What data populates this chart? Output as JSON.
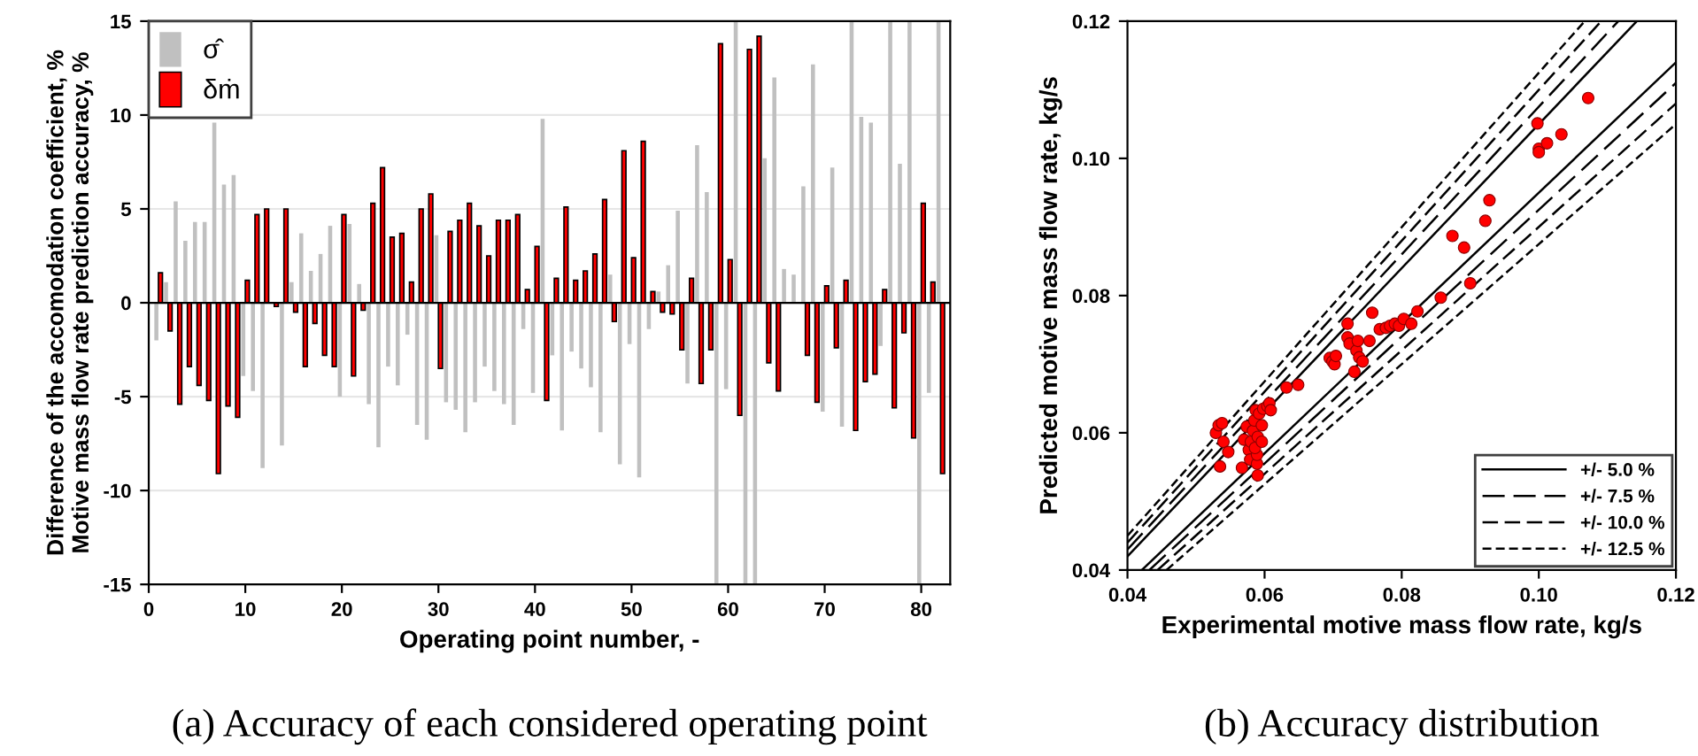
{
  "chart_data": [
    {
      "type": "bar",
      "xlabel": "Operating point number, -",
      "ylabel": "Difference of the accomodation coefficient, %\nMotive mass flow rate prediction accuracy, %",
      "x": [
        1,
        2,
        3,
        4,
        5,
        6,
        7,
        8,
        9,
        10,
        11,
        12,
        13,
        14,
        15,
        16,
        17,
        18,
        19,
        20,
        21,
        22,
        23,
        24,
        25,
        26,
        27,
        28,
        29,
        30,
        31,
        32,
        33,
        34,
        35,
        36,
        37,
        38,
        39,
        40,
        41,
        42,
        43,
        44,
        45,
        46,
        47,
        48,
        49,
        50,
        51,
        52,
        53,
        54,
        55,
        56,
        57,
        58,
        59,
        60,
        61,
        62,
        63,
        64,
        65,
        66,
        67,
        68,
        69,
        70,
        71,
        72,
        73,
        74,
        75,
        76,
        77,
        78,
        79,
        80,
        81,
        82
      ],
      "series": [
        {
          "name": "σ̂",
          "color": "#c0c0c0",
          "values": [
            -2.0,
            1.1,
            5.4,
            3.3,
            4.3,
            4.3,
            9.6,
            6.3,
            6.8,
            -3.9,
            -4.7,
            -8.8,
            null,
            -7.6,
            1.1,
            3.7,
            1.7,
            2.6,
            4.1,
            -5.0,
            4.2,
            1.0,
            -5.4,
            -7.7,
            -3.4,
            -4.4,
            -1.7,
            -6.5,
            -7.3,
            3.6,
            -5.3,
            -5.7,
            -6.9,
            -5.3,
            -3.4,
            -4.7,
            -5.4,
            -6.5,
            -1.4,
            -4.8,
            9.8,
            -2.8,
            -6.8,
            -2.6,
            -3.5,
            -4.5,
            -6.9,
            1.5,
            -8.6,
            -2.2,
            -9.3,
            -1.4,
            0.6,
            2.0,
            4.9,
            -4.3,
            8.4,
            5.9,
            -15,
            -4.6,
            15,
            -15,
            -15,
            7.7,
            12.0,
            1.8,
            1.5,
            6.2,
            12.7,
            -5.8,
            7.2,
            -6.6,
            15,
            9.9,
            9.6,
            -2.3,
            15,
            7.4,
            15,
            -15,
            -4.8,
            15
          ]
        },
        {
          "name": "δṁ",
          "color": "#ff0000",
          "values": [
            1.6,
            -1.5,
            -5.4,
            -3.4,
            -4.4,
            -5.2,
            -9.1,
            -5.5,
            -6.1,
            1.2,
            4.7,
            5.0,
            -0.2,
            5.0,
            -0.5,
            -3.4,
            -1.1,
            -2.8,
            -3.4,
            4.7,
            -3.9,
            -0.4,
            5.3,
            7.2,
            3.5,
            3.7,
            1.1,
            5.0,
            5.8,
            -3.5,
            3.8,
            4.4,
            5.3,
            4.1,
            2.5,
            4.4,
            4.4,
            4.7,
            0.7,
            3.0,
            -5.2,
            1.3,
            5.1,
            1.2,
            1.7,
            2.6,
            5.5,
            -1.0,
            8.1,
            2.4,
            8.6,
            0.6,
            -0.5,
            -0.6,
            -2.5,
            1.3,
            -4.3,
            -2.5,
            13.8,
            2.3,
            -6.0,
            13.5,
            14.2,
            -3.2,
            -4.7,
            null,
            null,
            -2.8,
            -5.3,
            0.9,
            -2.4,
            1.2,
            -6.8,
            -4.2,
            -3.8,
            0.7,
            -5.6,
            -1.6,
            -7.2,
            5.3,
            1.1,
            -9.1
          ]
        }
      ],
      "xlim": [
        0,
        83
      ],
      "xticks": [
        0,
        10,
        20,
        30,
        40,
        50,
        60,
        70,
        80
      ],
      "ylim": [
        -15,
        15
      ],
      "yticks": [
        -15,
        -10,
        -5,
        0,
        5,
        10,
        15
      ],
      "grid": "y",
      "legend": "top left",
      "annotations": [
        "(a) Accuracy of each considered operating point"
      ]
    },
    {
      "type": "scatter",
      "xlabel": "Experimental motive mass flow rate, kg/s",
      "ylabel": "Predicted motive mass flow rate, kg/s",
      "series": [
        {
          "type": "scatter",
          "color": "#ff0000",
          "marker": "circle",
          "x": [
            0.0529,
            0.0533,
            0.0538,
            0.0535,
            0.054,
            0.0547,
            0.0567,
            0.057,
            0.0574,
            0.0577,
            0.0579,
            0.058,
            0.0583,
            0.0585,
            0.0587,
            0.0589,
            0.059,
            0.0589,
            0.0586,
            0.059,
            0.0592,
            0.0596,
            0.0596,
            0.0598,
            0.0604,
            0.0607,
            0.0609,
            0.0632,
            0.0649,
            0.0695,
            0.0699,
            0.0702,
            0.0704,
            0.0721,
            0.0721,
            0.0724,
            0.0731,
            0.0734,
            0.0736,
            0.0738,
            0.0743,
            0.0753,
            0.0757,
            0.0768,
            0.0777,
            0.0783,
            0.079,
            0.0796,
            0.0803,
            0.0814,
            0.0823,
            0.0857,
            0.0874,
            0.0891,
            0.09,
            0.0922,
            0.0928,
            0.0998,
            0.1,
            0.1,
            0.1012,
            0.1033,
            0.1072
          ],
          "values": [
            0.06,
            0.0611,
            0.0614,
            0.0551,
            0.0587,
            0.0572,
            0.0549,
            0.059,
            0.0609,
            0.0575,
            0.0561,
            0.0587,
            0.0603,
            0.0618,
            0.0633,
            0.0555,
            0.0538,
            0.0568,
            0.0578,
            0.0594,
            0.0628,
            0.0611,
            0.0587,
            0.0635,
            0.0639,
            0.0643,
            0.0633,
            0.0666,
            0.067,
            0.0709,
            0.0704,
            0.07,
            0.0712,
            0.0759,
            0.0739,
            0.073,
            0.0689,
            0.072,
            0.0734,
            0.071,
            0.0704,
            0.0734,
            0.0775,
            0.0751,
            0.0753,
            0.0756,
            0.0759,
            0.0756,
            0.0766,
            0.0759,
            0.0777,
            0.0797,
            0.0887,
            0.087,
            0.0818,
            0.0909,
            0.0939,
            0.1051,
            0.1014,
            0.1009,
            0.1022,
            0.1035,
            0.1088
          ]
        },
        {
          "type": "line",
          "name": "+/- 5.0 %",
          "color": "#000000",
          "line_style": "solid",
          "x": [
            0.04,
            0.1143
          ],
          "values": [
            0.042,
            0.12
          ]
        },
        {
          "type": "line",
          "color": "#000000",
          "line_style": "solid",
          "x": [
            0.0421,
            0.12
          ],
          "values": [
            0.04,
            0.114
          ]
        },
        {
          "type": "line",
          "name": "+/- 7.5 %",
          "color": "#000000",
          "line_style": "dashed",
          "x": [
            0.04,
            0.1116
          ],
          "values": [
            0.043,
            0.12
          ]
        },
        {
          "type": "line",
          "color": "#000000",
          "line_style": "dashed",
          "x": [
            0.0432,
            0.12
          ],
          "values": [
            0.04,
            0.111
          ]
        },
        {
          "type": "line",
          "name": "+/- 10.0 %",
          "color": "#000000",
          "line_style": "dashed",
          "x": [
            0.04,
            0.1091
          ],
          "values": [
            0.044,
            0.12
          ]
        },
        {
          "type": "line",
          "color": "#000000",
          "line_style": "dashed",
          "x": [
            0.0444,
            0.12
          ],
          "values": [
            0.04,
            0.108
          ]
        },
        {
          "type": "line",
          "name": "+/- 12.5 %",
          "color": "#000000",
          "line_style": "dashed",
          "x": [
            0.04,
            0.1067
          ],
          "values": [
            0.045,
            0.12
          ]
        },
        {
          "type": "line",
          "color": "#000000",
          "line_style": "dashed",
          "x": [
            0.0457,
            0.12
          ],
          "values": [
            0.04,
            0.105
          ]
        }
      ],
      "xlim": [
        0.04,
        0.12
      ],
      "xticks": [
        {
          "value": 0.04,
          "label": "0.04"
        },
        {
          "value": 0.06,
          "label": "0.06"
        },
        {
          "value": 0.08,
          "label": "0.08"
        },
        {
          "value": 0.1,
          "label": "0.10"
        },
        {
          "value": 0.12,
          "label": "0.12"
        }
      ],
      "ylim": [
        0.04,
        0.12
      ],
      "yticks": [
        {
          "value": 0.04,
          "label": "0.04"
        },
        {
          "value": 0.06,
          "label": "0.06"
        },
        {
          "value": 0.08,
          "label": "0.08"
        },
        {
          "value": 0.1,
          "label": "0.10"
        },
        {
          "value": 0.12,
          "label": "0.12"
        }
      ],
      "grid": false,
      "legend": "bottom right",
      "annotations": [
        "(b) Accuracy distribution"
      ]
    }
  ]
}
